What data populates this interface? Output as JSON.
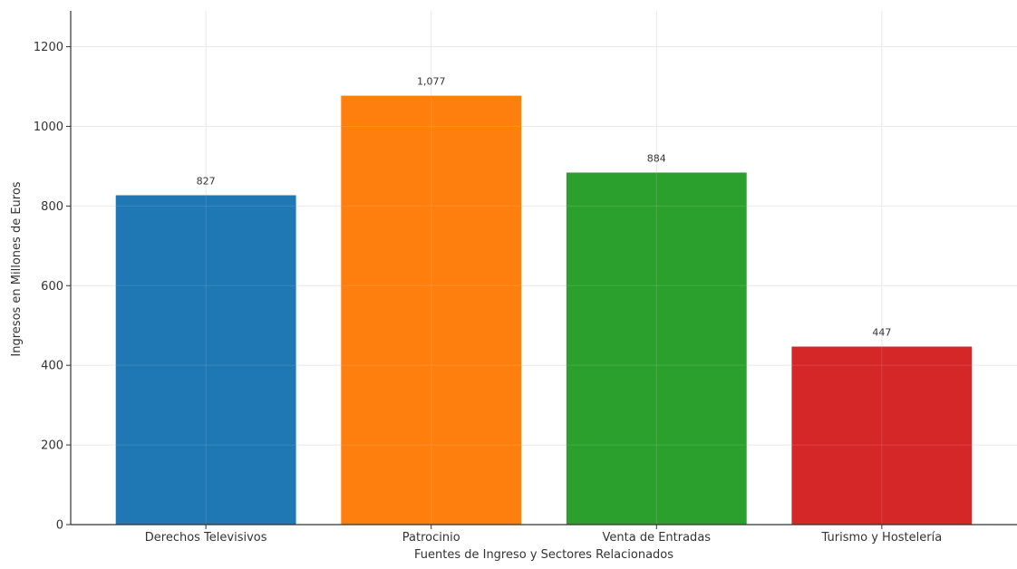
{
  "chart_data": {
    "type": "bar",
    "categories": [
      "Derechos Televisivos",
      "Patrocinio",
      "Venta de Entradas",
      "Turismo y Hostelería"
    ],
    "values": [
      827,
      1077,
      884,
      447
    ],
    "data_labels": [
      "827",
      "1,077",
      "884",
      "447"
    ],
    "colors": [
      "#1f77b4",
      "#ff7f0e",
      "#2ca02c",
      "#d62728"
    ],
    "title": "",
    "xlabel": "Fuentes de Ingreso y Sectores Relacionados",
    "ylabel": "Ingresos en Millones de Euros",
    "ylim": [
      0,
      1290
    ],
    "yticks": [
      0,
      200,
      400,
      600,
      800,
      1000,
      1200
    ],
    "grid": true,
    "legend": "none"
  }
}
